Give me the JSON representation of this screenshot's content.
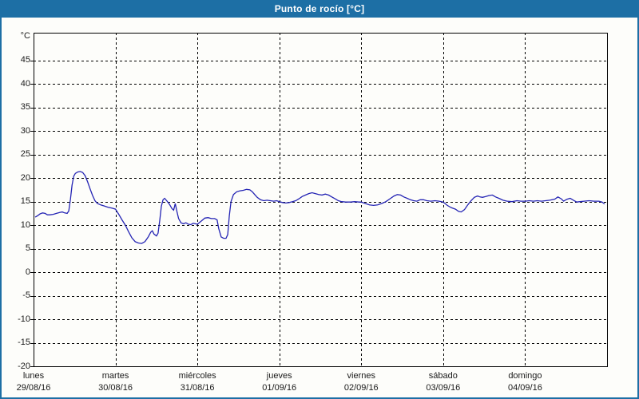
{
  "window": {
    "title": "Punto de rocío [°C]"
  },
  "colors": {
    "titlebar_bg": "#1d6fa5",
    "titlebar_text": "#ffffff",
    "window_border": "#1d6fa5",
    "background": "#fdfdfa",
    "grid": "#000000",
    "axis": "#000000",
    "line": "#2424b4",
    "label_text": "#1a1a1a"
  },
  "chart_data": {
    "type": "line",
    "title": "Punto de rocío [°C]",
    "y_unit_label": "°C",
    "ylabel": "",
    "xlabel": "",
    "ylim": [
      -20,
      50.9
    ],
    "y_ticks": [
      45,
      40,
      35,
      30,
      25,
      20,
      15,
      10,
      5,
      0,
      -5,
      -10,
      -15,
      -20
    ],
    "x_range_days": [
      0,
      7
    ],
    "grid": "dashed",
    "legend": "none",
    "x_days": [
      {
        "name": "lunes",
        "date": "29/08/16"
      },
      {
        "name": "martes",
        "date": "30/08/16"
      },
      {
        "name": "miércoles",
        "date": "31/08/16"
      },
      {
        "name": "jueves",
        "date": "01/09/16"
      },
      {
        "name": "viernes",
        "date": "02/09/16"
      },
      {
        "name": "sábado",
        "date": "03/09/16"
      },
      {
        "name": "domingo",
        "date": "04/09/16"
      }
    ],
    "series": [
      {
        "name": "Punto de rocío",
        "color": "#2424b4",
        "points": [
          [
            0.02,
            11.7
          ],
          [
            0.05,
            12.0
          ],
          [
            0.08,
            12.4
          ],
          [
            0.11,
            12.6
          ],
          [
            0.14,
            12.5
          ],
          [
            0.17,
            12.2
          ],
          [
            0.2,
            12.2
          ],
          [
            0.24,
            12.3
          ],
          [
            0.28,
            12.5
          ],
          [
            0.32,
            12.7
          ],
          [
            0.35,
            12.8
          ],
          [
            0.38,
            12.6
          ],
          [
            0.41,
            12.5
          ],
          [
            0.43,
            13.0
          ],
          [
            0.45,
            15.5
          ],
          [
            0.47,
            18.5
          ],
          [
            0.49,
            20.4
          ],
          [
            0.51,
            21.0
          ],
          [
            0.54,
            21.3
          ],
          [
            0.57,
            21.4
          ],
          [
            0.6,
            21.2
          ],
          [
            0.63,
            20.5
          ],
          [
            0.66,
            19.2
          ],
          [
            0.69,
            17.7
          ],
          [
            0.72,
            16.3
          ],
          [
            0.75,
            15.2
          ],
          [
            0.78,
            14.6
          ],
          [
            0.82,
            14.3
          ],
          [
            0.86,
            14.1
          ],
          [
            0.91,
            13.8
          ],
          [
            0.96,
            13.6
          ],
          [
            1.0,
            13.4
          ],
          [
            1.04,
            12.3
          ],
          [
            1.08,
            11.1
          ],
          [
            1.12,
            10.0
          ],
          [
            1.16,
            8.6
          ],
          [
            1.2,
            7.3
          ],
          [
            1.24,
            6.5
          ],
          [
            1.28,
            6.2
          ],
          [
            1.32,
            6.1
          ],
          [
            1.36,
            6.5
          ],
          [
            1.4,
            7.5
          ],
          [
            1.43,
            8.5
          ],
          [
            1.45,
            8.8
          ],
          [
            1.47,
            8.1
          ],
          [
            1.5,
            7.7
          ],
          [
            1.52,
            8.3
          ],
          [
            1.54,
            11.0
          ],
          [
            1.56,
            14.0
          ],
          [
            1.58,
            15.4
          ],
          [
            1.6,
            15.7
          ],
          [
            1.63,
            15.1
          ],
          [
            1.66,
            14.4
          ],
          [
            1.69,
            13.5
          ],
          [
            1.71,
            13.2
          ],
          [
            1.73,
            14.6
          ],
          [
            1.75,
            12.9
          ],
          [
            1.77,
            11.4
          ],
          [
            1.8,
            10.5
          ],
          [
            1.83,
            10.3
          ],
          [
            1.86,
            10.5
          ],
          [
            1.89,
            10.2
          ],
          [
            1.92,
            10.1
          ],
          [
            1.95,
            10.4
          ],
          [
            2.0,
            10.2
          ],
          [
            2.05,
            10.9
          ],
          [
            2.09,
            11.5
          ],
          [
            2.13,
            11.6
          ],
          [
            2.17,
            11.4
          ],
          [
            2.21,
            11.4
          ],
          [
            2.24,
            11.1
          ],
          [
            2.26,
            9.3
          ],
          [
            2.29,
            7.5
          ],
          [
            2.32,
            7.2
          ],
          [
            2.35,
            7.2
          ],
          [
            2.37,
            8.0
          ],
          [
            2.39,
            12.0
          ],
          [
            2.41,
            15.0
          ],
          [
            2.44,
            16.5
          ],
          [
            2.48,
            17.1
          ],
          [
            2.52,
            17.3
          ],
          [
            2.56,
            17.4
          ],
          [
            2.6,
            17.6
          ],
          [
            2.64,
            17.5
          ],
          [
            2.67,
            17.1
          ],
          [
            2.7,
            16.5
          ],
          [
            2.73,
            15.9
          ],
          [
            2.77,
            15.4
          ],
          [
            2.81,
            15.2
          ],
          [
            2.85,
            15.3
          ],
          [
            2.89,
            15.2
          ],
          [
            2.93,
            15.1
          ],
          [
            2.97,
            15.2
          ],
          [
            3.0,
            15.0
          ],
          [
            3.04,
            14.8
          ],
          [
            3.08,
            14.7
          ],
          [
            3.12,
            14.8
          ],
          [
            3.16,
            15.0
          ],
          [
            3.2,
            15.2
          ],
          [
            3.24,
            15.6
          ],
          [
            3.28,
            16.1
          ],
          [
            3.32,
            16.4
          ],
          [
            3.36,
            16.7
          ],
          [
            3.4,
            16.9
          ],
          [
            3.44,
            16.7
          ],
          [
            3.48,
            16.5
          ],
          [
            3.52,
            16.4
          ],
          [
            3.56,
            16.6
          ],
          [
            3.6,
            16.4
          ],
          [
            3.64,
            16.0
          ],
          [
            3.68,
            15.6
          ],
          [
            3.72,
            15.2
          ],
          [
            3.76,
            15.0
          ],
          [
            3.81,
            14.9
          ],
          [
            3.87,
            14.9
          ],
          [
            3.92,
            15.0
          ],
          [
            3.97,
            14.9
          ],
          [
            4.0,
            14.9
          ],
          [
            4.05,
            14.6
          ],
          [
            4.1,
            14.3
          ],
          [
            4.15,
            14.2
          ],
          [
            4.2,
            14.3
          ],
          [
            4.25,
            14.6
          ],
          [
            4.3,
            15.0
          ],
          [
            4.35,
            15.6
          ],
          [
            4.4,
            16.2
          ],
          [
            4.44,
            16.5
          ],
          [
            4.48,
            16.4
          ],
          [
            4.52,
            16.0
          ],
          [
            4.56,
            15.7
          ],
          [
            4.6,
            15.4
          ],
          [
            4.64,
            15.2
          ],
          [
            4.68,
            15.1
          ],
          [
            4.72,
            15.4
          ],
          [
            4.76,
            15.4
          ],
          [
            4.8,
            15.2
          ],
          [
            4.85,
            15.1
          ],
          [
            4.9,
            15.2
          ],
          [
            4.95,
            15.1
          ],
          [
            5.0,
            14.9
          ],
          [
            5.05,
            14.2
          ],
          [
            5.1,
            13.7
          ],
          [
            5.15,
            13.4
          ],
          [
            5.19,
            12.9
          ],
          [
            5.22,
            12.8
          ],
          [
            5.26,
            13.3
          ],
          [
            5.3,
            14.3
          ],
          [
            5.34,
            15.2
          ],
          [
            5.38,
            15.9
          ],
          [
            5.42,
            16.2
          ],
          [
            5.45,
            16.0
          ],
          [
            5.48,
            15.9
          ],
          [
            5.52,
            16.1
          ],
          [
            5.56,
            16.3
          ],
          [
            5.6,
            16.4
          ],
          [
            5.64,
            16.0
          ],
          [
            5.68,
            15.7
          ],
          [
            5.73,
            15.3
          ],
          [
            5.78,
            15.1
          ],
          [
            5.84,
            15.0
          ],
          [
            5.9,
            15.2
          ],
          [
            5.95,
            15.1
          ],
          [
            6.0,
            15.1
          ],
          [
            6.05,
            15.2
          ],
          [
            6.1,
            15.1
          ],
          [
            6.15,
            15.2
          ],
          [
            6.2,
            15.1
          ],
          [
            6.25,
            15.2
          ],
          [
            6.3,
            15.3
          ],
          [
            6.36,
            15.5
          ],
          [
            6.4,
            16.0
          ],
          [
            6.44,
            15.6
          ],
          [
            6.47,
            15.1
          ],
          [
            6.51,
            15.5
          ],
          [
            6.55,
            15.7
          ],
          [
            6.59,
            15.3
          ],
          [
            6.63,
            14.9
          ],
          [
            6.67,
            15.0
          ],
          [
            6.72,
            15.1
          ],
          [
            6.78,
            15.2
          ],
          [
            6.84,
            15.1
          ],
          [
            6.9,
            15.1
          ],
          [
            6.94,
            14.9
          ],
          [
            6.97,
            14.5
          ]
        ]
      }
    ]
  }
}
